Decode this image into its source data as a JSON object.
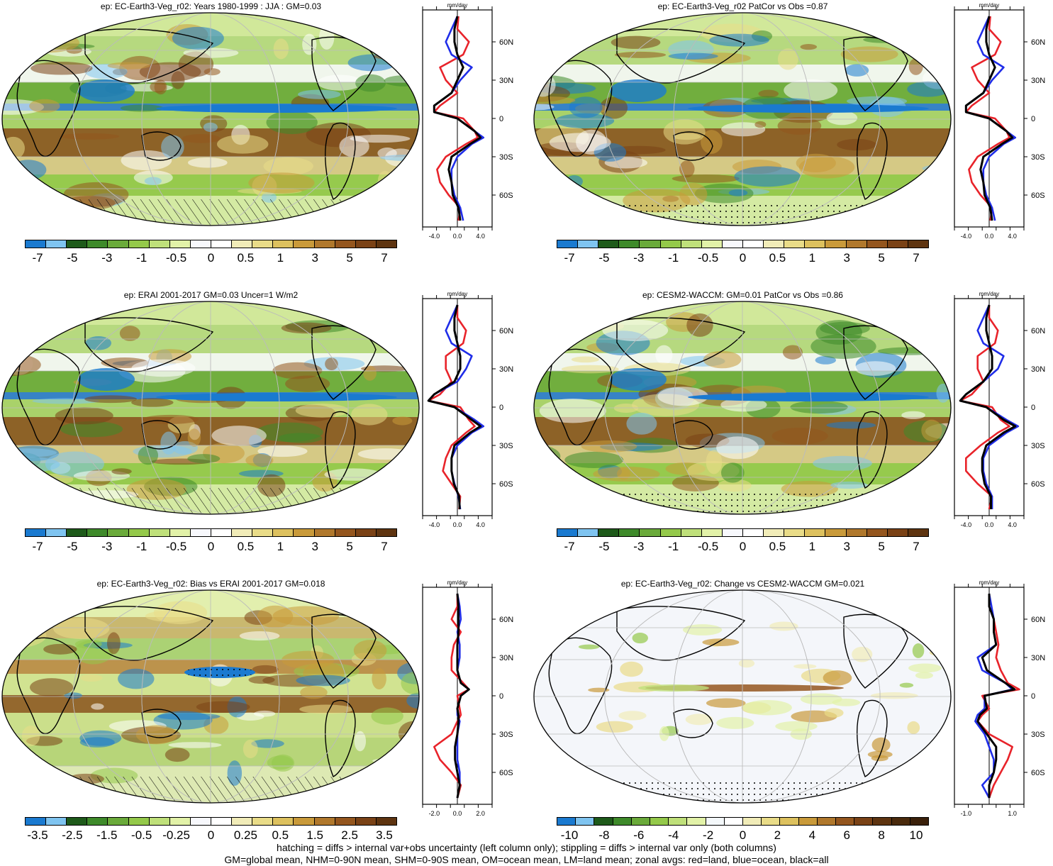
{
  "panels": [
    {
      "id": "p1",
      "title": "ep: EC-Earth3-Veg_r02: Years 1980-1999 : JJA : GM=0.03",
      "cbar": "full",
      "labels": [
        "-7",
        "-5",
        "-3",
        "-1",
        "-0.5",
        "0",
        "0.5",
        "1",
        "3",
        "5",
        "7"
      ],
      "xticks": [
        "-4.0",
        "0.0",
        "4.0"
      ],
      "xrange": [
        -6,
        6
      ]
    },
    {
      "id": "p2",
      "title": "ep: EC-Earth3-Veg_r02 PatCor vs Obs =0.87",
      "cbar": "full",
      "labels": [
        "-7",
        "-5",
        "-3",
        "-1",
        "-0.5",
        "0",
        "0.5",
        "1",
        "3",
        "5",
        "7"
      ],
      "xticks": [
        "-4.0",
        "0.0",
        "4.0"
      ],
      "xrange": [
        -6,
        6
      ]
    },
    {
      "id": "p3",
      "title": "ep: ERAI 2001-2017 GM=0.03 Uncer=1 W/m2",
      "cbar": "full",
      "labels": [
        "-7",
        "-5",
        "-3",
        "-1",
        "-0.5",
        "0",
        "0.5",
        "1",
        "3",
        "5",
        "7"
      ],
      "xticks": [
        "-4.0",
        "0.0",
        "4.0"
      ],
      "xrange": [
        -6,
        6
      ]
    },
    {
      "id": "p4",
      "title": "ep: CESM2-WACCM: GM=0.01 PatCor vs Obs =0.86",
      "cbar": "full",
      "labels": [
        "-7",
        "-5",
        "-3",
        "-1",
        "-0.5",
        "0",
        "0.5",
        "1",
        "3",
        "5",
        "7"
      ],
      "xticks": [
        "-4.0",
        "0.0",
        "4.0"
      ],
      "xrange": [
        -6,
        6
      ]
    },
    {
      "id": "p5",
      "title": "ep: EC-Earth3-Veg_r02: Bias vs ERAI 2001-2017 GM=0.018",
      "cbar": "full",
      "labels": [
        "-3.5",
        "-2.5",
        "-1.5",
        "-0.5",
        "-0.25",
        "0",
        "0.25",
        "0.5",
        "1.5",
        "2.5",
        "3.5"
      ],
      "xticks": [
        "-2.0",
        "0.0",
        "2.0"
      ],
      "xrange": [
        -3,
        3
      ]
    },
    {
      "id": "p6",
      "title": "ep: EC-Earth3-Veg_r02: Change vs CESM2-WACCM GM=0.021",
      "cbar": "short",
      "labels": [
        "-10",
        "-8",
        "-6",
        "-4",
        "-2",
        "0",
        "2",
        "4",
        "6",
        "8",
        "10"
      ],
      "xticks": [
        "-1.0",
        "1.0"
      ],
      "xrange": [
        -1.5,
        1.5
      ]
    }
  ],
  "zonal_unit": "mm/day",
  "lat_labels": [
    "60N",
    "30N",
    "0",
    "30S",
    "60S"
  ],
  "colors": {
    "full": [
      "#1a7ad0",
      "#7fc4f0",
      "#1e5a1a",
      "#3e8a2a",
      "#6aaa3a",
      "#94c94a",
      "#bfe07a",
      "#e2f2a8",
      "#f7f8fc",
      "#ffffff",
      "#f1ecb8",
      "#e9dc88",
      "#ddc15e",
      "#c99a3a",
      "#b0782c",
      "#94561e",
      "#7a4216",
      "#5e3410"
    ],
    "short": [
      "#1a7ad0",
      "#7fc4f0",
      "#1e5a1a",
      "#3e8a2a",
      "#6aaa3a",
      "#94c94a",
      "#bfe07a",
      "#e2f2a8",
      "#f4f8fa",
      "#ffffff",
      "#f1ecb8",
      "#e9dc88",
      "#ddc15e",
      "#c99a3a",
      "#b0782c",
      "#94561e",
      "#7a4216",
      "#5e3410",
      "#4a2a0c",
      "#3a200a"
    ],
    "land": "#e8232a",
    "ocean": "#1f2de8",
    "all": "#000000"
  },
  "footer": {
    "line1": "hatching = diffs > internal var+obs uncertainty (left column only); stippling = diffs > internal var only (both columns)",
    "line2": "GM=global mean, NHM=0-90N mean, SHM=0-90S mean, OM=ocean mean, LM=land mean; zonal avgs: red=land, blue=ocean, black=all"
  },
  "chart_data": [
    {
      "type": "heatmap",
      "title": "ep: EC-Earth3-Veg_r02: Years 1980-1999 : JJA : GM=0.03",
      "colorbar_ticks": [
        -7,
        -5,
        -3,
        -1,
        -0.5,
        0,
        0.5,
        1,
        3,
        5,
        7
      ],
      "zonal_mean": {
        "xlabel": "mm/day",
        "xlim": [
          -6,
          6
        ],
        "lat": [
          -80,
          -70,
          -60,
          -50,
          -40,
          -30,
          -20,
          -15,
          -10,
          0,
          5,
          10,
          20,
          30,
          40,
          50,
          60,
          70,
          80
        ],
        "series": [
          {
            "name": "red",
            "values": [
              0.2,
              0.5,
              -1.5,
              -3,
              -3.5,
              -2,
              1.5,
              3.5,
              3,
              1,
              -4,
              -3,
              0,
              -2,
              -3,
              1,
              2,
              0,
              0.2
            ]
          },
          {
            "name": "blue",
            "values": [
              1,
              0.5,
              -0.5,
              -1,
              -1,
              0,
              2.5,
              4.5,
              3,
              0,
              -4,
              -4,
              -1,
              0.5,
              2.5,
              -1,
              -2,
              -1,
              0
            ]
          },
          {
            "name": "black",
            "values": [
              0.5,
              0.2,
              -0.8,
              -1,
              -1.5,
              -1,
              2.2,
              4,
              3,
              0,
              -4,
              -4,
              -1,
              0,
              1,
              0,
              -0.5,
              -0.5,
              0
            ]
          }
        ]
      }
    },
    {
      "type": "heatmap",
      "title": "ep: EC-Earth3-Veg_r02 PatCor vs Obs =0.87",
      "colorbar_ticks": [
        -7,
        -5,
        -3,
        -1,
        -0.5,
        0,
        0.5,
        1,
        3,
        5,
        7
      ],
      "zonal_mean": {
        "xlabel": "mm/day",
        "xlim": [
          -6,
          6
        ],
        "lat": [
          -80,
          -70,
          -60,
          -50,
          -40,
          -30,
          -20,
          -15,
          -10,
          0,
          5,
          10,
          20,
          30,
          40,
          50,
          60,
          70,
          80
        ],
        "series": [
          {
            "name": "red",
            "values": [
              0.2,
              0.5,
              -1.5,
              -3,
              -3.5,
              -2,
              1.5,
              3.5,
              3,
              1,
              -4,
              -3,
              0,
              -2,
              -3,
              1,
              2,
              0,
              0.2
            ]
          },
          {
            "name": "blue",
            "values": [
              1,
              0.5,
              -0.5,
              -1,
              -1,
              0,
              2.5,
              4.5,
              3,
              0,
              -4,
              -4,
              -1,
              0.5,
              2.5,
              -1,
              -2,
              -1,
              0
            ]
          },
          {
            "name": "black",
            "values": [
              0.5,
              0.2,
              -0.8,
              -1,
              -1.5,
              -1,
              2.2,
              4,
              3,
              0,
              -4,
              -4,
              -1,
              0,
              1,
              0,
              -0.5,
              -0.5,
              0
            ]
          }
        ]
      }
    },
    {
      "type": "heatmap",
      "title": "ep: ERAI 2001-2017 GM=0.03 Uncer=1 W/m2",
      "colorbar_ticks": [
        -7,
        -5,
        -3,
        -1,
        -0.5,
        0,
        0.5,
        1,
        3,
        5,
        7
      ],
      "zonal_mean": {
        "xlabel": "mm/day",
        "xlim": [
          -6,
          6
        ],
        "lat": [
          -80,
          -70,
          -60,
          -50,
          -40,
          -30,
          -20,
          -15,
          -10,
          0,
          5,
          10,
          20,
          30,
          40,
          50,
          60,
          70,
          80
        ],
        "series": [
          {
            "name": "red",
            "values": [
              0.3,
              0.5,
              -1,
              -2.5,
              -2,
              -1,
              1.5,
              3,
              2,
              0.5,
              -5,
              -3,
              -1,
              -2,
              -2,
              1,
              1.5,
              0,
              0
            ]
          },
          {
            "name": "blue",
            "values": [
              0.5,
              0.2,
              -0.5,
              -1,
              -1,
              0,
              2.5,
              4.5,
              3,
              -0.5,
              -5,
              -4,
              0,
              1.5,
              2.5,
              -1,
              -2,
              -1,
              0
            ]
          },
          {
            "name": "black",
            "values": [
              0.4,
              0.3,
              -0.6,
              -1,
              -1,
              -0.5,
              2.2,
              4,
              2.5,
              -0.5,
              -5,
              -4,
              -0.5,
              0.5,
              0.5,
              0,
              -0.5,
              -0.5,
              0
            ]
          }
        ]
      }
    },
    {
      "type": "heatmap",
      "title": "ep: CESM2-WACCM: GM=0.01 PatCor vs Obs =0.86",
      "colorbar_ticks": [
        -7,
        -5,
        -3,
        -1,
        -0.5,
        0,
        0.5,
        1,
        3,
        5,
        7
      ],
      "zonal_mean": {
        "xlabel": "mm/day",
        "xlim": [
          -6,
          6
        ],
        "lat": [
          -80,
          -70,
          -60,
          -50,
          -40,
          -30,
          -20,
          -15,
          -10,
          0,
          5,
          10,
          20,
          30,
          40,
          50,
          60,
          70,
          80
        ],
        "series": [
          {
            "name": "red",
            "values": [
              0,
              0.5,
              -2,
              -4,
              -4,
              -1.5,
              1.5,
              3.5,
              2,
              0.5,
              -5,
              -3,
              -1,
              -2,
              -2,
              1,
              1.5,
              0,
              0
            ]
          },
          {
            "name": "blue",
            "values": [
              0.5,
              0.5,
              -0.5,
              -1,
              -1,
              0,
              3,
              5,
              3,
              -0.5,
              -5,
              -4,
              -1,
              1.5,
              2.5,
              -1,
              -2,
              -1,
              0
            ]
          },
          {
            "name": "black",
            "values": [
              0.3,
              0.3,
              -0.8,
              -1.2,
              -1.2,
              -0.5,
              2.5,
              4.5,
              2.5,
              -0.5,
              -5,
              -4,
              -1,
              0.5,
              0.5,
              0,
              -0.5,
              -0.5,
              0
            ]
          }
        ]
      }
    },
    {
      "type": "heatmap",
      "title": "ep: EC-Earth3-Veg_r02: Bias vs ERAI 2001-2017 GM=0.018",
      "colorbar_ticks": [
        -3.5,
        -2.5,
        -1.5,
        -0.5,
        -0.25,
        0,
        0.25,
        0.5,
        1.5,
        2.5,
        3.5
      ],
      "zonal_mean": {
        "xlabel": "mm/day",
        "xlim": [
          -3,
          3
        ],
        "lat": [
          -80,
          -70,
          -60,
          -50,
          -40,
          -30,
          -20,
          -15,
          -10,
          0,
          5,
          10,
          20,
          30,
          40,
          50,
          60,
          70,
          80
        ],
        "series": [
          {
            "name": "red",
            "values": [
              0,
              0.3,
              -0.5,
              -1.5,
              -2,
              -0.5,
              0,
              0.3,
              0.2,
              0,
              1,
              0.5,
              -0.5,
              -0.5,
              -0.3,
              0.3,
              -0.5,
              0,
              0
            ]
          },
          {
            "name": "blue",
            "values": [
              0,
              0.2,
              0.2,
              0,
              0,
              0,
              0.2,
              0,
              0,
              0.3,
              1,
              0.3,
              0,
              0.2,
              0.2,
              0,
              0.3,
              0.2,
              0
            ]
          },
          {
            "name": "black",
            "values": [
              0,
              0.2,
              0,
              -0.2,
              -0.2,
              0,
              0.1,
              0.1,
              0,
              0.3,
              1,
              0.3,
              0,
              0,
              0,
              0.1,
              0.1,
              0.1,
              0
            ]
          }
        ]
      }
    },
    {
      "type": "heatmap",
      "title": "ep: EC-Earth3-Veg_r02: Change vs CESM2-WACCM GM=0.021",
      "colorbar_ticks": [
        -10,
        -8,
        -6,
        -4,
        -2,
        0,
        2,
        4,
        6,
        8,
        10
      ],
      "zonal_mean": {
        "xlabel": "mm/day",
        "xlim": [
          -1.5,
          1.5
        ],
        "lat": [
          -80,
          -70,
          -60,
          -50,
          -40,
          -30,
          -20,
          -15,
          -10,
          0,
          5,
          10,
          20,
          30,
          40,
          50,
          60,
          70,
          80
        ],
        "series": [
          {
            "name": "red",
            "values": [
              0,
              0.2,
              0.5,
              0.8,
              1,
              0,
              -0.5,
              -0.3,
              0,
              -0.3,
              1.3,
              0.8,
              0.5,
              0.3,
              0.4,
              0.3,
              0.2,
              0,
              0
            ]
          },
          {
            "name": "blue",
            "values": [
              0,
              -0.3,
              0.2,
              0.2,
              0,
              -0.2,
              -0.6,
              -0.5,
              -0.2,
              -0.2,
              1,
              0.7,
              -0.3,
              -0.5,
              0.3,
              0.2,
              0.2,
              0.1,
              0
            ]
          },
          {
            "name": "black",
            "values": [
              0,
              0,
              0.2,
              0.3,
              0.3,
              -0.1,
              -0.5,
              -0.4,
              -0.1,
              -0.2,
              1.1,
              0.7,
              -0.1,
              -0.3,
              0.3,
              0.2,
              0.2,
              0,
              0
            ]
          }
        ]
      }
    }
  ]
}
